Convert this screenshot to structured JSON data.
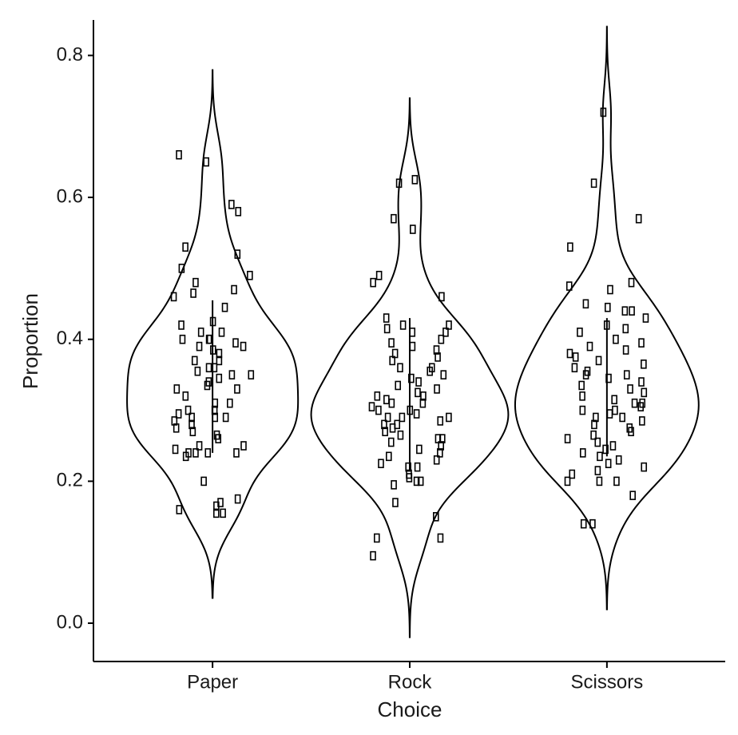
{
  "chart_data": {
    "type": "violin",
    "x_label": "Choice",
    "y_label": "Proportion",
    "categories": [
      "Paper",
      "Rock",
      "Scissors"
    ],
    "points": [
      [
        0.59,
        0.66,
        0.65,
        0.58,
        0.53,
        0.52,
        0.5,
        0.49,
        0.48,
        0.47,
        0.46,
        0.465,
        0.445,
        0.425,
        0.42,
        0.41,
        0.41,
        0.4,
        0.4,
        0.4,
        0.395,
        0.39,
        0.39,
        0.385,
        0.38,
        0.37,
        0.37,
        0.36,
        0.36,
        0.355,
        0.35,
        0.35,
        0.345,
        0.34,
        0.335,
        0.33,
        0.33,
        0.32,
        0.31,
        0.31,
        0.3,
        0.3,
        0.295,
        0.29,
        0.29,
        0.29,
        0.285,
        0.28,
        0.275,
        0.27,
        0.265,
        0.26,
        0.25,
        0.25,
        0.245,
        0.24,
        0.24,
        0.24,
        0.24,
        0.235,
        0.2,
        0.175,
        0.17,
        0.165,
        0.16,
        0.155,
        0.155
      ],
      [
        0.625,
        0.62,
        0.57,
        0.555,
        0.49,
        0.48,
        0.46,
        0.43,
        0.42,
        0.42,
        0.415,
        0.41,
        0.41,
        0.4,
        0.395,
        0.39,
        0.385,
        0.38,
        0.375,
        0.37,
        0.36,
        0.36,
        0.355,
        0.35,
        0.345,
        0.34,
        0.335,
        0.33,
        0.325,
        0.32,
        0.32,
        0.315,
        0.31,
        0.31,
        0.305,
        0.3,
        0.3,
        0.295,
        0.29,
        0.29,
        0.29,
        0.285,
        0.28,
        0.28,
        0.275,
        0.27,
        0.265,
        0.26,
        0.26,
        0.255,
        0.25,
        0.245,
        0.24,
        0.235,
        0.23,
        0.225,
        0.22,
        0.22,
        0.21,
        0.205,
        0.2,
        0.2,
        0.195,
        0.17,
        0.15,
        0.12,
        0.12,
        0.095
      ],
      [
        0.72,
        0.62,
        0.57,
        0.53,
        0.48,
        0.475,
        0.47,
        0.45,
        0.445,
        0.44,
        0.44,
        0.43,
        0.42,
        0.415,
        0.41,
        0.4,
        0.395,
        0.39,
        0.385,
        0.38,
        0.375,
        0.37,
        0.365,
        0.36,
        0.355,
        0.35,
        0.35,
        0.345,
        0.34,
        0.335,
        0.33,
        0.325,
        0.32,
        0.315,
        0.31,
        0.31,
        0.305,
        0.3,
        0.3,
        0.295,
        0.29,
        0.29,
        0.285,
        0.28,
        0.275,
        0.27,
        0.265,
        0.26,
        0.255,
        0.25,
        0.245,
        0.24,
        0.235,
        0.23,
        0.225,
        0.22,
        0.215,
        0.21,
        0.2,
        0.2,
        0.2,
        0.18,
        0.14,
        0.14
      ]
    ],
    "whiskers": [
      [
        0.24,
        0.455
      ],
      [
        0.215,
        0.43
      ],
      [
        0.235,
        0.43
      ]
    ],
    "color": "#000000",
    "ylim": [
      -0.054,
      0.85
    ],
    "yticks": [
      {
        "value": 0,
        "label": "0.0"
      },
      0.2,
      0.4,
      0.6,
      0.8
    ]
  }
}
